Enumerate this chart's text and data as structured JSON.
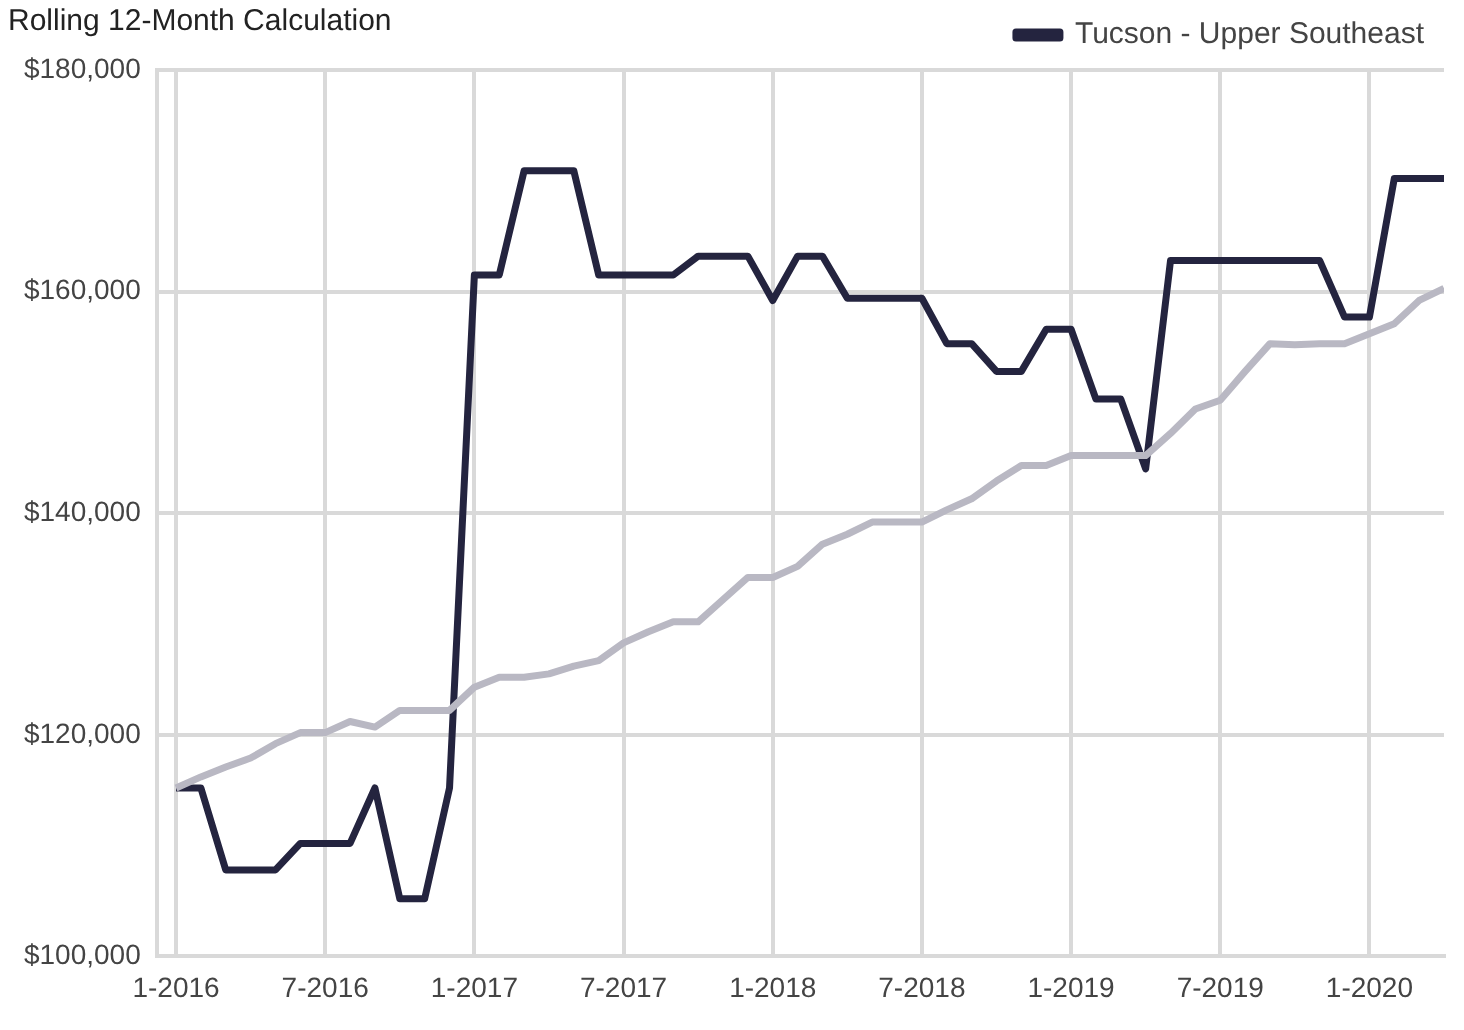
{
  "chart_data": {
    "type": "line",
    "title": "Rolling 12-Month Calculation",
    "x": [
      "2016-01",
      "2016-02",
      "2016-03",
      "2016-04",
      "2016-05",
      "2016-06",
      "2016-07",
      "2016-08",
      "2016-09",
      "2016-10",
      "2016-11",
      "2016-12",
      "2017-01",
      "2017-02",
      "2017-03",
      "2017-04",
      "2017-05",
      "2017-06",
      "2017-07",
      "2017-08",
      "2017-09",
      "2017-10",
      "2017-11",
      "2017-12",
      "2018-01",
      "2018-02",
      "2018-03",
      "2018-04",
      "2018-05",
      "2018-06",
      "2018-07",
      "2018-08",
      "2018-09",
      "2018-10",
      "2018-11",
      "2018-12",
      "2019-01",
      "2019-02",
      "2019-03",
      "2019-04",
      "2019-05",
      "2019-06",
      "2019-07",
      "2019-08",
      "2019-09",
      "2019-10",
      "2019-11",
      "2019-12",
      "2020-01",
      "2020-02",
      "2020-03",
      "2020-04"
    ],
    "series": [
      {
        "color": "#b9b8c3",
        "values": [
          115200,
          116200,
          117100,
          117900,
          119200,
          120200,
          120200,
          121200,
          120700,
          122200,
          122200,
          122200,
          124300,
          125200,
          125200,
          125500,
          126200,
          126700,
          128300,
          129300,
          130200,
          130200,
          132200,
          134200,
          134200,
          135200,
          137200,
          138100,
          139200,
          139200,
          139200,
          140300,
          141300,
          142900,
          144300,
          144300,
          145200,
          145200,
          145200,
          145200,
          147200,
          149400,
          150200,
          152800,
          155300,
          155200,
          155300,
          155300,
          156200,
          157100,
          159200,
          160300
        ]
      },
      {
        "name": "Tucson - Upper Southeast",
        "color": "#24243f",
        "values": [
          115200,
          115200,
          107800,
          107800,
          107800,
          110200,
          110200,
          110200,
          115200,
          105200,
          105200,
          115200,
          161500,
          161500,
          170900,
          170900,
          170900,
          161500,
          161500,
          161500,
          161500,
          163200,
          163200,
          163200,
          159200,
          163200,
          163200,
          159400,
          159400,
          159400,
          159400,
          155300,
          155300,
          152800,
          152800,
          156600,
          156600,
          150300,
          150300,
          144000,
          162800,
          162800,
          162800,
          162800,
          162800,
          162800,
          162800,
          157700,
          157700,
          170200,
          170200,
          170200
        ]
      }
    ],
    "xlim": [
      "2015-12-08",
      "2020-04-01"
    ],
    "xticks": [
      {
        "value": "2016-01",
        "label": "1-2016"
      },
      {
        "value": "2016-07",
        "label": "7-2016"
      },
      {
        "value": "2017-01",
        "label": "1-2017"
      },
      {
        "value": "2017-07",
        "label": "7-2017"
      },
      {
        "value": "2018-01",
        "label": "1-2018"
      },
      {
        "value": "2018-07",
        "label": "7-2018"
      },
      {
        "value": "2019-01",
        "label": "1-2019"
      },
      {
        "value": "2019-07",
        "label": "7-2019"
      },
      {
        "value": "2020-01",
        "label": "1-2020"
      }
    ],
    "ylim": [
      100000,
      180000
    ],
    "yticks": [
      {
        "value": 100000,
        "label": "$100,000"
      },
      {
        "value": 120000,
        "label": "$120,000"
      },
      {
        "value": 140000,
        "label": "$140,000"
      },
      {
        "value": 160000,
        "label": "$160,000"
      },
      {
        "value": 180000,
        "label": "$180,000"
      }
    ],
    "grid": true,
    "legend": "top right",
    "marker": "none",
    "line_style": "solid"
  }
}
